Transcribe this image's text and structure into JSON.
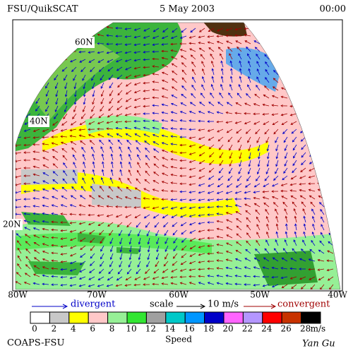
{
  "header": {
    "title": "FSU/QuikSCAT",
    "date": "5 May 2003",
    "time": "00:00"
  },
  "map": {
    "lat_labels": [
      "60N",
      "40N",
      "20N"
    ],
    "lon_labels": [
      "80W",
      "70W",
      "60W",
      "50W",
      "40W"
    ]
  },
  "legend": {
    "divergent": "divergent",
    "scale": "scale",
    "scale_value": "10 m/s",
    "convergent": "convergent"
  },
  "colorbar": {
    "ticks": [
      0,
      2,
      4,
      6,
      8,
      10,
      12,
      14,
      16,
      18,
      20,
      22,
      24,
      26,
      28
    ],
    "unit": "m/s",
    "label": "Speed",
    "colors": [
      "#ffffff",
      "#c8c8c8",
      "#ffff00",
      "#ffc8c8",
      "#96f096",
      "#32e632",
      "#a0a0a0",
      "#00c8c8",
      "#0096ff",
      "#0000c8",
      "#ff64ff",
      "#b496ff",
      "#ff0000",
      "#c83200",
      "#000000"
    ]
  },
  "credits": {
    "institution": "COAPS-FSU",
    "author": "Yan Gu"
  }
}
